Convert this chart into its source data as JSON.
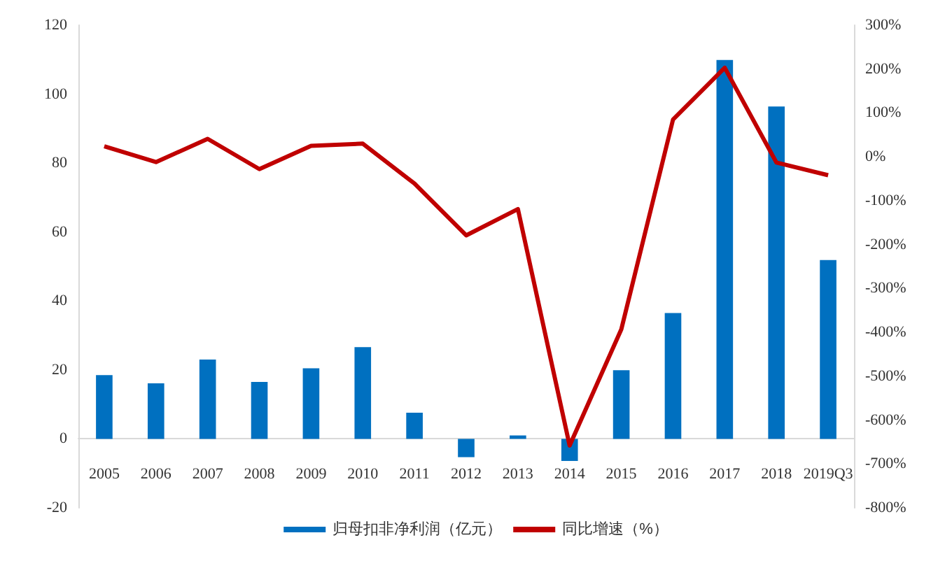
{
  "chart_data": {
    "type": "bar",
    "categories": [
      "2005",
      "2006",
      "2007",
      "2008",
      "2009",
      "2010",
      "2011",
      "2012",
      "2013",
      "2014",
      "2015",
      "2016",
      "2017",
      "2018",
      "2019Q3"
    ],
    "series": [
      {
        "name": "归母扣非净利润（亿元）",
        "color": "#0070c0",
        "values": [
          18.5,
          16.1,
          23,
          16.5,
          20.5,
          26.6,
          7.6,
          -5.3,
          1,
          -6.4,
          19.9,
          36.5,
          109.9,
          96.4,
          51.9
        ]
      },
      {
        "name": "同比增速（%）",
        "type": "line",
        "axis": "y2",
        "color": "#c00000",
        "values": [
          24,
          -12,
          41,
          -28,
          25,
          30,
          -61,
          -179,
          -119,
          -658,
          -393,
          85,
          203,
          -13,
          -42
        ]
      }
    ],
    "ylim": [
      -20,
      120
    ],
    "yticks": [
      -20,
      0,
      20,
      40,
      60,
      80,
      100,
      120
    ],
    "y2lim": [
      -800,
      300
    ],
    "y2ticks": [
      {
        "value": -800,
        "label": "-800%"
      },
      {
        "value": -700,
        "label": "-700%"
      },
      {
        "value": -600,
        "label": "-600%"
      },
      {
        "value": -500,
        "label": "-500%"
      },
      {
        "value": -400,
        "label": "-400%"
      },
      {
        "value": -300,
        "label": "-300%"
      },
      {
        "value": -200,
        "label": "-200%"
      },
      {
        "value": -100,
        "label": "-100%"
      },
      {
        "value": 0,
        "label": "0%"
      },
      {
        "value": 100,
        "label": "100%"
      },
      {
        "value": 200,
        "label": "200%"
      },
      {
        "value": 300,
        "label": "300%"
      }
    ],
    "grid": false,
    "legend": "bottom",
    "marker": "none"
  }
}
